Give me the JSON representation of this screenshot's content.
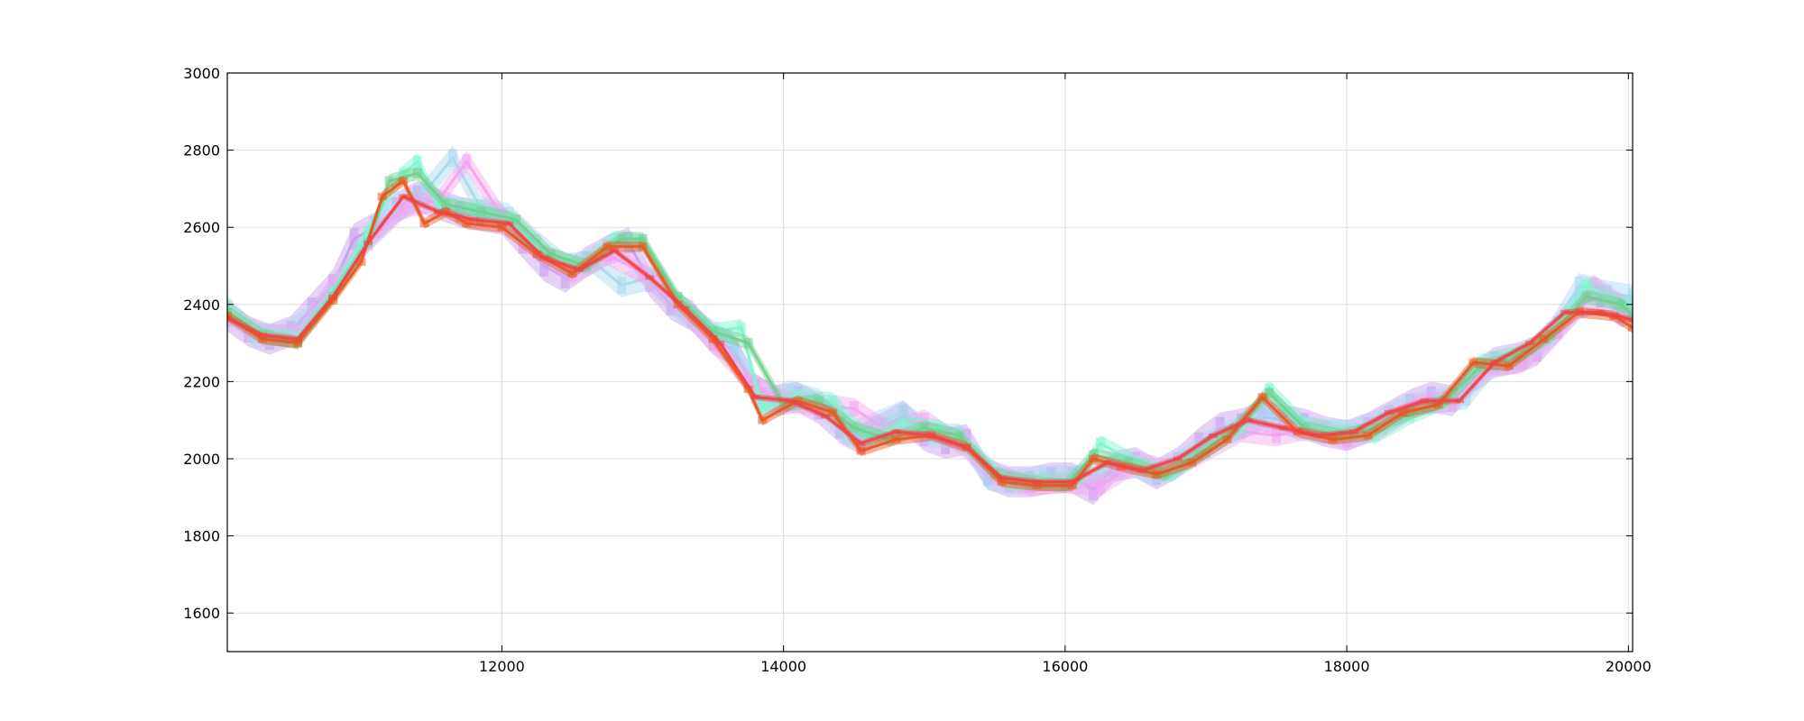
{
  "chart_data": {
    "type": "area",
    "title": "",
    "xlabel": "",
    "ylabel": "",
    "xlim": [
      10050,
      20030
    ],
    "ylim": [
      1500,
      3000
    ],
    "grid": true,
    "x_ticks": [
      12000,
      14000,
      16000,
      18000,
      20000
    ],
    "y_ticks": [
      1600,
      1800,
      2000,
      2200,
      2400,
      2600,
      2800,
      3000
    ],
    "x_tick_labels": [
      "12000",
      "14000",
      "16000",
      "18000",
      "20000"
    ],
    "y_tick_labels": [
      "1600",
      "1800",
      "2000",
      "2200",
      "2400",
      "2600",
      "2800",
      "3000"
    ],
    "colors": {
      "orange": "#e8571e",
      "green": "#6fcf8f",
      "aqua": "#7ff5d0",
      "violet": "#c79aee",
      "skyblue": "#a8d8f0",
      "pink": "#f4a3f0",
      "red": "#ee4444"
    },
    "series": [
      {
        "color": "#c79aee",
        "x": [
          10050,
          10200,
          10350,
          10500,
          10650,
          10800,
          10950,
          11100,
          11250,
          11400,
          11550,
          11700,
          11850,
          12000,
          12150,
          12300,
          12450,
          12600,
          12750,
          12900,
          13050,
          13200,
          13350,
          13500,
          13650,
          13800,
          13950,
          14100,
          14250,
          14400,
          14550,
          14700,
          14850,
          15000,
          15150,
          15300,
          15450,
          15600,
          15750,
          15900,
          16050,
          16200,
          16350,
          16500,
          16650,
          16800,
          16950,
          17100,
          17250,
          17400,
          17550,
          17700,
          17850,
          18000,
          18150,
          18300,
          18450,
          18600,
          18750,
          18900,
          19050,
          19200,
          19350,
          19500,
          19650,
          19800,
          19950,
          20030
        ],
        "y": [
          2370,
          2330,
          2310,
          2330,
          2390,
          2450,
          2570,
          2600,
          2650,
          2680,
          2660,
          2640,
          2630,
          2620,
          2560,
          2500,
          2470,
          2510,
          2540,
          2560,
          2460,
          2400,
          2370,
          2310,
          2280,
          2180,
          2150,
          2160,
          2130,
          2080,
          2050,
          2080,
          2110,
          2060,
          2040,
          2050,
          1960,
          1940,
          1940,
          1950,
          1950,
          1920,
          1980,
          1990,
          1960,
          1990,
          2040,
          2080,
          2090,
          2110,
          2100,
          2090,
          2070,
          2060,
          2080,
          2110,
          2140,
          2160,
          2150,
          2210,
          2250,
          2260,
          2280,
          2340,
          2400,
          2420,
          2380,
          2390
        ],
        "band": 40
      },
      {
        "color": "#a8d8f0",
        "x": [
          10050,
          10250,
          10450,
          10650,
          10850,
          11050,
          11250,
          11450,
          11650,
          11850,
          12050,
          12250,
          12450,
          12650,
          12850,
          13050,
          13250,
          13450,
          13650,
          13850,
          14050,
          14250,
          14450,
          14650,
          14850,
          15050,
          15250,
          15450,
          15650,
          15850,
          16050,
          16250,
          16450,
          16650,
          16850,
          17050,
          17250,
          17450,
          17650,
          17850,
          18050,
          18250,
          18450,
          18650,
          18850,
          19050,
          19250,
          19450,
          19650,
          19850,
          20030
        ],
        "y": [
          2390,
          2320,
          2320,
          2370,
          2460,
          2570,
          2640,
          2690,
          2780,
          2650,
          2630,
          2560,
          2500,
          2510,
          2450,
          2470,
          2390,
          2340,
          2290,
          2150,
          2170,
          2150,
          2060,
          2090,
          2120,
          2060,
          2060,
          1950,
          1940,
          1950,
          1950,
          1960,
          1990,
          1960,
          2000,
          2050,
          2080,
          2120,
          2080,
          2070,
          2070,
          2100,
          2140,
          2150,
          2160,
          2250,
          2260,
          2330,
          2450,
          2430,
          2420
        ],
        "band": 32
      },
      {
        "color": "#f4a3f0",
        "x": [
          10050,
          10300,
          10550,
          10800,
          11050,
          11300,
          11550,
          11750,
          12000,
          12250,
          12500,
          12750,
          13000,
          13250,
          13500,
          13750,
          14000,
          14250,
          14500,
          14750,
          15000,
          15250,
          15500,
          15750,
          16000,
          16250,
          16500,
          16750,
          17000,
          17250,
          17500,
          17750,
          18000,
          18250,
          18500,
          18750,
          19000,
          19250,
          19500,
          19750,
          20030
        ],
        "y": [
          2380,
          2320,
          2320,
          2450,
          2560,
          2650,
          2670,
          2770,
          2630,
          2540,
          2480,
          2530,
          2480,
          2400,
          2300,
          2200,
          2150,
          2140,
          2130,
          2070,
          2100,
          2040,
          1960,
          1930,
          1940,
          1930,
          1990,
          1970,
          2020,
          2070,
          2060,
          2080,
          2050,
          2080,
          2140,
          2150,
          2240,
          2250,
          2330,
          2450,
          2380
        ],
        "band": 28
      },
      {
        "color": "#7ff5d0",
        "x": [
          10050,
          10300,
          10550,
          10800,
          11050,
          11300,
          11400,
          11550,
          11800,
          12050,
          12300,
          12550,
          12800,
          13000,
          13250,
          13500,
          13700,
          13850,
          14100,
          14350,
          14600,
          14850,
          15100,
          15350,
          15600,
          15850,
          16100,
          16250,
          16500,
          16750,
          17000,
          17250,
          17450,
          17700,
          17950,
          18200,
          18450,
          18700,
          18950,
          19200,
          19450,
          19700,
          19950,
          20030
        ],
        "y": [
          2390,
          2320,
          2310,
          2430,
          2590,
          2740,
          2770,
          2660,
          2650,
          2620,
          2530,
          2500,
          2570,
          2560,
          2410,
          2330,
          2340,
          2130,
          2160,
          2150,
          2050,
          2090,
          2080,
          2020,
          1940,
          1940,
          1950,
          2040,
          1990,
          1960,
          2020,
          2080,
          2180,
          2090,
          2070,
          2060,
          2110,
          2150,
          2250,
          2270,
          2320,
          2450,
          2400,
          2400
        ],
        "band": 22
      },
      {
        "color": "#6fcf8f",
        "x": [
          10050,
          10300,
          10550,
          10800,
          11050,
          11200,
          11400,
          11600,
          11850,
          12100,
          12350,
          12600,
          12850,
          13000,
          13250,
          13500,
          13750,
          14000,
          14250,
          14500,
          14750,
          15000,
          15250,
          15500,
          15750,
          16000,
          16200,
          16450,
          16700,
          16950,
          17200,
          17450,
          17700,
          17950,
          18200,
          18450,
          18700,
          18950,
          19200,
          19450,
          19700,
          19950,
          20030
        ],
        "y": [
          2380,
          2320,
          2300,
          2420,
          2560,
          2720,
          2740,
          2660,
          2640,
          2620,
          2530,
          2500,
          2570,
          2570,
          2420,
          2330,
          2300,
          2140,
          2150,
          2080,
          2050,
          2080,
          2060,
          1960,
          1940,
          1930,
          2010,
          1990,
          1960,
          2010,
          2080,
          2170,
          2080,
          2060,
          2080,
          2120,
          2150,
          2240,
          2260,
          2320,
          2420,
          2400,
          2370
        ],
        "band": 18
      },
      {
        "color": "#e8571e",
        "x": [
          10050,
          10300,
          10550,
          10800,
          11000,
          11150,
          11300,
          11450,
          11600,
          11750,
          12000,
          12250,
          12500,
          12750,
          13000,
          13250,
          13500,
          13750,
          13850,
          14100,
          14350,
          14550,
          14800,
          15050,
          15300,
          15550,
          15800,
          16050,
          16200,
          16400,
          16650,
          16900,
          17150,
          17400,
          17650,
          17900,
          18150,
          18400,
          18650,
          18900,
          19150,
          19400,
          19650,
          19900,
          20030
        ],
        "y": [
          2370,
          2310,
          2300,
          2410,
          2510,
          2680,
          2720,
          2610,
          2640,
          2610,
          2600,
          2530,
          2480,
          2550,
          2550,
          2400,
          2310,
          2180,
          2100,
          2150,
          2120,
          2020,
          2050,
          2060,
          2030,
          1940,
          1930,
          1930,
          2000,
          1980,
          1960,
          1990,
          2050,
          2160,
          2070,
          2050,
          2060,
          2120,
          2140,
          2250,
          2240,
          2310,
          2380,
          2370,
          2340
        ],
        "band": 14
      },
      {
        "color": "#ee4444",
        "x": [
          10050,
          10300,
          10550,
          10800,
          11050,
          11300,
          11550,
          11800,
          12050,
          12300,
          12550,
          12800,
          13050,
          13300,
          13550,
          13800,
          14050,
          14300,
          14550,
          14800,
          15050,
          15300,
          15550,
          15800,
          16050,
          16300,
          16550,
          16800,
          17050,
          17300,
          17550,
          17800,
          18050,
          18300,
          18550,
          18800,
          19050,
          19300,
          19550,
          19800,
          20030
        ],
        "y": [
          2365,
          2320,
          2310,
          2420,
          2560,
          2680,
          2640,
          2620,
          2610,
          2520,
          2490,
          2540,
          2470,
          2390,
          2300,
          2160,
          2150,
          2110,
          2040,
          2070,
          2060,
          2030,
          1950,
          1940,
          1940,
          1990,
          1970,
          2000,
          2060,
          2100,
          2080,
          2060,
          2070,
          2120,
          2150,
          2150,
          2250,
          2300,
          2380,
          2380,
          2360
        ],
        "band": 8
      }
    ]
  }
}
